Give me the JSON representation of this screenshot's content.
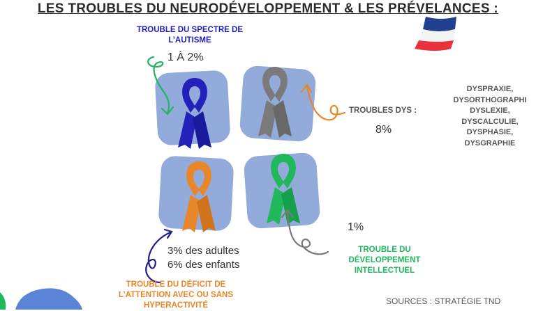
{
  "title": "LES TROUBLES DU NEURODÉVELOPPEMENT & LES PRÉVELANCES :",
  "autism": {
    "label_line1": "TROUBLE DU SPECTRE DE",
    "label_line2": "L’AUTISME",
    "value": "1 À 2%",
    "color": "#2222bb"
  },
  "dys": {
    "label": "TROUBLES DYS :",
    "value": "8%",
    "list": [
      "DYSPRAXIE,",
      "DYSORTHOGRAPHI",
      "DYSLEXIE,",
      "DYSCALCULIE,",
      "DYSPHASIE,",
      "DYSGRAPHIE"
    ],
    "color": "#777777"
  },
  "adhd": {
    "label_line1": "TROUBLE DU DÉFICIT DE",
    "label_line2": "L’ATTENTION AVEC OU SANS",
    "label_line3": "HYPERACTIVITÉ",
    "value_adults": "3% des adultes",
    "value_children": "6% des enfants",
    "color": "#e8862a"
  },
  "intellectual": {
    "label_line1": "TROUBLE DU",
    "label_line2": "DÉVELOPPEMENT",
    "label_line3": "INTELLECTUEL",
    "value": "1%",
    "color": "#1fb85a"
  },
  "sources": "SOURCES : STRATÉGIE TND",
  "colors": {
    "tile": "#93abdb",
    "flag_blue": "#1f3f8f",
    "flag_red": "#e8323e"
  }
}
